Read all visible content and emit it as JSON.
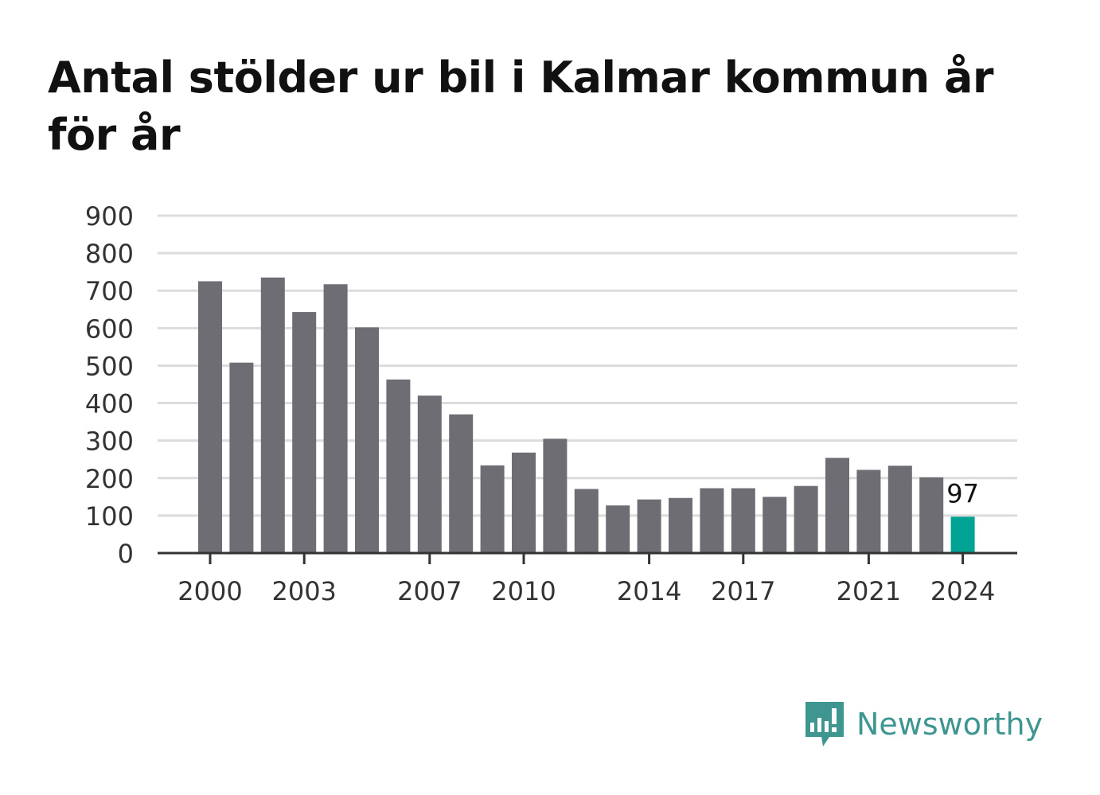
{
  "title": "Antal stölder ur bil i Kalmar kommun år för år",
  "brand": {
    "name": "Newsworthy",
    "color": "#3f9690",
    "icon": "newsworthy-chart-bubble-icon"
  },
  "chart_data": {
    "type": "bar",
    "title": "Antal stölder ur bil i Kalmar kommun år för år",
    "xlabel": "",
    "ylabel": "",
    "ylim": [
      0,
      900
    ],
    "yticks": [
      "0",
      "100",
      "200",
      "300",
      "400",
      "500",
      "600",
      "700",
      "800",
      "900"
    ],
    "xticks": [
      "2000",
      "2003",
      "2007",
      "2010",
      "2014",
      "2017",
      "2021",
      "2024"
    ],
    "grid": true,
    "categories": [
      "2000",
      "2001",
      "2002",
      "2003",
      "2004",
      "2005",
      "2006",
      "2007",
      "2008",
      "2009",
      "2010",
      "2011",
      "2012",
      "2013",
      "2014",
      "2015",
      "2016",
      "2017",
      "2018",
      "2019",
      "2020",
      "2021",
      "2022",
      "2023",
      "2024"
    ],
    "values": [
      725,
      508,
      735,
      643,
      717,
      602,
      463,
      420,
      370,
      234,
      268,
      305,
      171,
      127,
      143,
      147,
      173,
      173,
      150,
      179,
      254,
      222,
      233,
      202,
      97
    ],
    "bar_color": "#6e6d74",
    "highlight_color": "#00a394",
    "highlight_index": 24,
    "data_labels": [
      {
        "index": 24,
        "text": "97"
      }
    ]
  }
}
